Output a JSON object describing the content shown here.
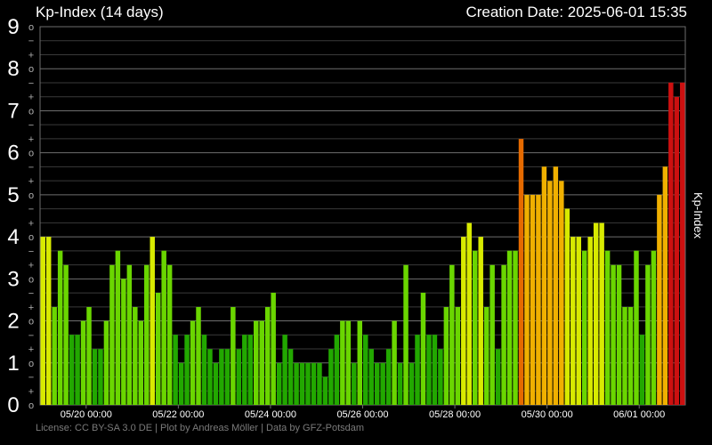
{
  "header": {
    "title": "Kp-Index (14 days)",
    "creation_date": "Creation Date: 2025-06-01 15:35"
  },
  "footer": {
    "license": "License: CC BY-SA 3.0 DE | Plot by Andreas Möller | Data by GFZ-Potsdam"
  },
  "chart_data": {
    "type": "bar",
    "ylabel": "Kp-Index",
    "ylim": [
      0,
      9
    ],
    "y_major_ticks": [
      "0",
      "1",
      "2",
      "3",
      "4",
      "5",
      "6",
      "7",
      "8",
      "9"
    ],
    "y_minor_marks": [
      "+",
      "o",
      "−"
    ],
    "x_tick_labels": [
      "05/20 00:00",
      "05/22 00:00",
      "05/24 00:00",
      "05/26 00:00",
      "05/28 00:00",
      "05/30 00:00",
      "06/01 00:00"
    ],
    "grid": true,
    "colors": {
      "background": "#000000",
      "grid": "#6e6e6e",
      "text": "#ffffff",
      "minor_text": "#b0b0b0",
      "footer_text": "#7a7a7a",
      "bar_quiet_dark": "#22a800",
      "bar_quiet": "#6ad600",
      "bar_active": "#d8ea00",
      "bar_g1": "#f0b000",
      "bar_g2": "#e56a00",
      "bar_g3": "#cc1010"
    },
    "values": [
      4,
      4,
      2.33,
      3.67,
      3.33,
      1.67,
      1.67,
      2,
      2.33,
      1.33,
      1.33,
      2,
      3.33,
      3.67,
      3,
      3.33,
      2.33,
      2,
      3.33,
      4,
      2.67,
      3.67,
      3.33,
      1.67,
      1,
      1.67,
      2,
      2.33,
      1.67,
      1.33,
      1,
      1.33,
      1.33,
      2.33,
      1.33,
      1.67,
      1.67,
      2,
      2,
      2.33,
      2.67,
      1,
      1.67,
      1.33,
      1,
      1,
      1,
      1,
      1,
      0.67,
      1.33,
      1.67,
      2,
      2,
      1,
      2,
      1.67,
      1.33,
      1,
      1,
      1.33,
      2,
      1,
      3.33,
      1,
      1.67,
      2.67,
      1.67,
      1.67,
      1.33,
      2.33,
      3.33,
      2.33,
      4,
      4.33,
      3.67,
      4,
      2.33,
      3.33,
      1.33,
      3.33,
      3.67,
      3.67,
      6.33,
      5,
      5,
      5,
      5.67,
      5.33,
      5.67,
      5.33,
      4.67,
      4,
      4,
      3.67,
      4,
      4.33,
      4.33,
      3.67,
      3.33,
      3.33,
      2.33,
      2.33,
      3.67,
      1.67,
      3.33,
      3.67,
      5,
      5.67,
      7.67,
      7.33,
      7.67
    ]
  }
}
